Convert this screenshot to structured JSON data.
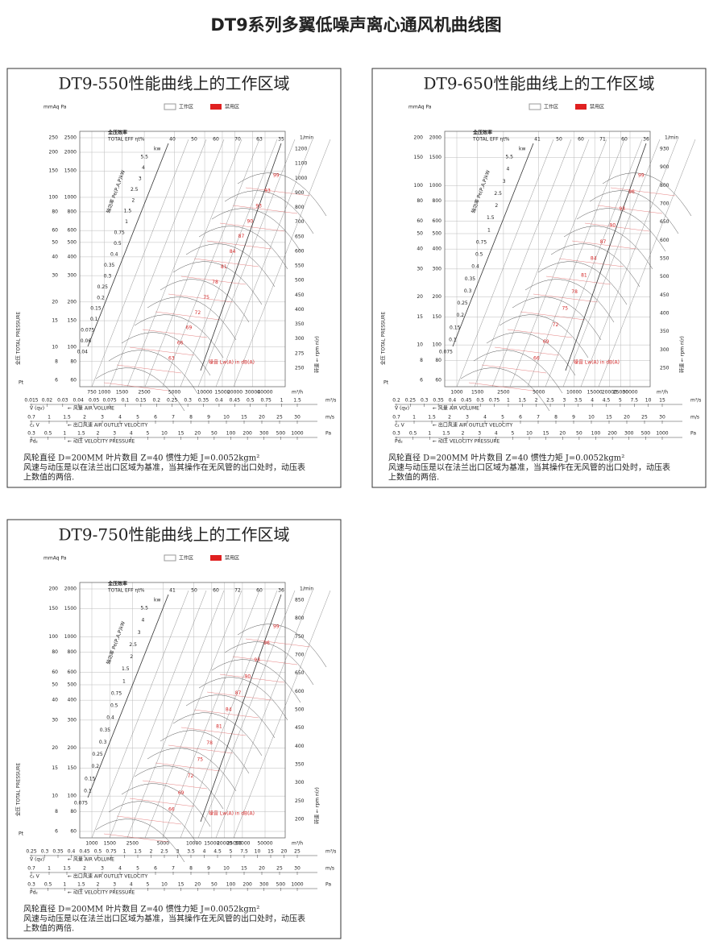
{
  "title": "DT9系列多翼低噪声离心通风机曲线图",
  "panels": [
    {
      "title": "DT9-550性能曲线上的工作区域",
      "legend": [
        "工作区",
        "禁用区"
      ],
      "labels": {
        "unit_left": "mmAq Pa",
        "eff_cn": "全压效率",
        "eff_en": "TOTAL EFF  ηt%",
        "kw": "kw",
        "power": "轴功率 Pe(P,A,P)kW",
        "pressure": "全压 TOTAL PRESSURE",
        "pt": "Pt",
        "rpm_unit": "1/min",
        "rpm": "转速 ← rpm n(r)",
        "noise": "噪音 Lw(A) in dB(A)",
        "flow_unit": "m³/h",
        "flow_s_unit": "m³/s",
        "qv": "V (qv)",
        "air_volume": "← 风量 AIR VOLUME",
        "ms": "m/s",
        "c2": "c₂ V",
        "outlet": "← 出口风速 AIR OUTLET VELOCITY",
        "pa": "Pa",
        "pd2": "Pd₂",
        "vp": "← 动压 VELOCITY PRESSURE"
      },
      "mmaq": [
        250,
        200,
        150,
        100,
        80,
        60,
        50,
        40,
        30,
        20,
        15,
        10,
        8,
        6
      ],
      "pa_left": [
        2500,
        2000,
        1500,
        1000,
        800,
        600,
        500,
        400,
        300,
        200,
        150,
        100,
        80,
        60
      ],
      "rpm": [
        1200,
        1100,
        1000,
        900,
        800,
        700,
        650,
        600,
        550,
        500,
        450,
        400,
        350,
        300,
        275,
        250
      ],
      "eff": [
        40,
        50,
        60,
        70,
        63,
        35
      ],
      "kw_values": [
        5.5,
        4,
        3,
        2.5,
        2,
        1.5,
        1,
        0.75,
        0.5,
        0.4,
        0.35,
        0.3,
        0.25,
        0.2,
        0.15,
        0.1,
        0.075,
        0.06,
        0.04
      ],
      "noise": [
        99,
        93,
        93,
        90,
        87,
        84,
        81,
        78,
        75,
        72,
        69,
        66,
        63
      ],
      "flow_h": [
        750,
        1000,
        1500,
        2500,
        5000,
        10000,
        15000,
        20000,
        30000,
        40000
      ],
      "flow_s": [
        0.015,
        0.02,
        0.03,
        0.04,
        0.05,
        0.075,
        0.1,
        0.15,
        0.2,
        0.25,
        0.3,
        0.35,
        0.4,
        0.45,
        0.5,
        0.75,
        1,
        1.5
      ],
      "velocity": [
        0.7,
        1,
        1.5,
        2,
        3,
        4,
        5,
        6,
        7,
        8,
        9,
        10,
        15,
        20,
        25,
        30
      ],
      "vpressure": [
        0.3,
        0.5,
        1,
        1.5,
        2,
        3,
        4,
        5,
        10,
        15,
        20,
        50,
        100,
        200,
        300,
        500,
        1000
      ],
      "notes": [
        "风轮直径    D=200MM     叶片数目    Z=40        惯性力矩      J=0.0052kgm²",
        "风速与动压是以在法兰出口区域为基准，当其操作在无风管的出口处时，动压表",
        "上数值的两倍."
      ]
    },
    {
      "title": "DT9-650性能曲线上的工作区域",
      "legend": [
        "工作区",
        "禁用区"
      ],
      "labels": {
        "unit_left": "mmAq Pa",
        "eff_cn": "全压效率",
        "eff_en": "TOTAL EFF  ηt%",
        "kw": "kw",
        "power": "轴功率 Pe(P,A,P)kW",
        "pressure": "全压 TOTAL PRESSURE",
        "pt": "Pt",
        "rpm_unit": "1/min",
        "rpm": "转速 ← rpm n(r)",
        "noise": "噪音 Lw(A) in dB(A)",
        "flow_unit": "m³/h",
        "flow_s_unit": "m³/s",
        "qv": "V (qv)",
        "air_volume": "← 风量 AIR VOLUME",
        "ms": "m/s",
        "c2": "c₂ V",
        "outlet": "← 出口风速 AIR OUTLET VELOCITY",
        "pa": "Pa",
        "pd2": "Pd₂",
        "vp": "← 动压 VELOCITY PRESSURE"
      },
      "mmaq": [
        200,
        150,
        100,
        80,
        60,
        50,
        40,
        30,
        20,
        15,
        10,
        8,
        6
      ],
      "pa_left": [
        2000,
        1500,
        1000,
        800,
        600,
        500,
        400,
        300,
        200,
        150,
        100,
        80,
        60
      ],
      "rpm": [
        930,
        900,
        800,
        700,
        650,
        600,
        550,
        500,
        450,
        400,
        350,
        300,
        250
      ],
      "eff": [
        41,
        50,
        60,
        71,
        60,
        36
      ],
      "kw_values": [
        5.5,
        4,
        3,
        2.5,
        2,
        1.5,
        1,
        0.75,
        0.5,
        0.4,
        0.35,
        0.3,
        0.25,
        0.2,
        0.15,
        0.1,
        0.075
      ],
      "noise": [
        99,
        96,
        93,
        90,
        87,
        84,
        81,
        78,
        75,
        72,
        69,
        66
      ],
      "flow_h": [
        1000,
        1500,
        2500,
        5000,
        10000,
        15000,
        20000,
        25000,
        30000
      ],
      "flow_s": [
        0.2,
        0.25,
        0.3,
        0.35,
        0.4,
        0.45,
        0.5,
        0.75,
        1,
        1.5,
        2,
        2.5,
        3,
        3.5,
        4,
        4.5,
        5,
        7.5,
        10,
        15
      ],
      "velocity": [
        0.7,
        1,
        1.5,
        2,
        3,
        4,
        5,
        6,
        7,
        8,
        9,
        10,
        15,
        20,
        25,
        30
      ],
      "vpressure": [
        0.3,
        0.5,
        1,
        1.5,
        2,
        3,
        4,
        5,
        10,
        15,
        20,
        50,
        100,
        200,
        300,
        500,
        1000
      ],
      "notes": [
        "风轮直径    D=200MM     叶片数目    Z=40        惯性力矩      J=0.0052kgm²",
        "风速与动压是以在法兰出口区域为基准，当其操作在无风管的出口处时，动压表",
        "上数值的两倍."
      ]
    },
    {
      "title": "DT9-750性能曲线上的工作区域",
      "legend": [
        "工作区",
        "禁用区"
      ],
      "labels": {
        "unit_left": "mmAq Pa",
        "eff_cn": "全压效率",
        "eff_en": "TOTAL EFF  ηt%",
        "kw": "kw",
        "power": "轴功率 Pe(P,A,P)kW",
        "pressure": "全压 TOTAL PRESSURE",
        "pt": "Pt",
        "rpm_unit": "1/min",
        "rpm": "转速 ← rpm n(r)",
        "noise": "噪音 Lw(A) in dB(A)",
        "flow_unit": "m³/h",
        "flow_s_unit": "m³/s",
        "qv": "V (qv)",
        "air_volume": "← 风量 AIR VOLUME",
        "ms": "m/s",
        "c2": "c₂ V",
        "outlet": "← 出口风速 AIR OUTLET VELOCITY",
        "pa": "Pa",
        "pd2": "Pd₂",
        "vp": "← 动压 VELOCITY PRESSURE"
      },
      "mmaq": [
        200,
        150,
        100,
        80,
        60,
        50,
        40,
        30,
        20,
        15,
        10,
        8,
        6
      ],
      "pa_left": [
        2000,
        1500,
        1000,
        800,
        600,
        500,
        400,
        300,
        200,
        150,
        100,
        80,
        60
      ],
      "rpm": [
        850,
        800,
        750,
        700,
        650,
        600,
        500,
        450,
        400,
        350,
        300,
        250,
        200
      ],
      "eff": [
        41,
        50,
        60,
        72,
        60,
        36
      ],
      "kw_values": [
        5.5,
        4,
        3,
        2.5,
        2,
        1.5,
        1,
        0.75,
        0.5,
        0.4,
        0.35,
        0.3,
        0.25,
        0.2,
        0.15,
        0.1,
        0.075
      ],
      "noise": [
        99,
        96,
        93,
        90,
        87,
        84,
        81,
        78,
        75,
        72,
        69,
        66
      ],
      "flow_h": [
        1000,
        1500,
        2500,
        5000,
        10000,
        15000,
        20000,
        25000,
        30000,
        50000
      ],
      "flow_s": [
        0.25,
        0.3,
        0.35,
        0.4,
        0.45,
        0.5,
        0.75,
        1,
        1.5,
        2,
        2.5,
        3,
        3.5,
        4,
        4.5,
        5,
        7.5,
        10,
        15,
        20,
        25
      ],
      "velocity": [
        0.7,
        1,
        1.5,
        2,
        3,
        4,
        5,
        6,
        7,
        8,
        9,
        10,
        15,
        20,
        25,
        30
      ],
      "vpressure": [
        0.3,
        0.5,
        1,
        1.5,
        2,
        3,
        4,
        5,
        10,
        15,
        20,
        50,
        100,
        200,
        300,
        500,
        1000
      ],
      "notes": [
        "风轮直径    D=200MM     叶片数目    Z=40        惯性力矩      J=0.0052kgm²",
        "风速与动压是以在法兰出口区域为基准，当其操作在无风管的出口处时，动压表",
        "上数值的两倍."
      ]
    }
  ]
}
